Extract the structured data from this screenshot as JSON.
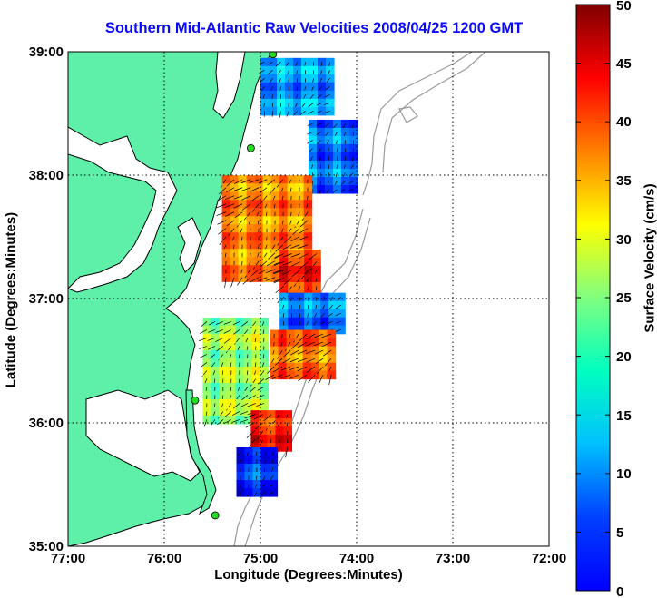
{
  "title": "Southern Mid-Atlantic Raw Velocities 2008/04/25 1200 GMT",
  "x_axis": {
    "label": "Longitude (Degrees:Minutes)",
    "ticks": [
      "77:00",
      "76:00",
      "75:00",
      "74:00",
      "73:00",
      "72:00"
    ],
    "range": [
      -77,
      -72
    ]
  },
  "y_axis": {
    "label": "Latitude (Degrees:Minutes)",
    "ticks": [
      "35:00",
      "36:00",
      "37:00",
      "38:00",
      "39:00"
    ],
    "range": [
      35,
      39
    ]
  },
  "colorbar": {
    "label": "Surface Velocity (cm/s)",
    "ticks": [
      "0",
      "5",
      "10",
      "15",
      "20",
      "25",
      "30",
      "35",
      "40",
      "45",
      "50"
    ],
    "range": [
      0,
      50
    ],
    "colormap": "jet"
  },
  "colors": {
    "land": "#5ef0a8",
    "coastline": "#000000",
    "bathymetry": "#9a9a9a",
    "grid": "#000000",
    "title": "#0a0aff",
    "station": "#22dd22"
  },
  "legend": "none",
  "grid": "dotted",
  "chart_data": {
    "type": "heatmap",
    "title": "Southern Mid-Atlantic Raw Velocities 2008/04/25 1200 GMT",
    "xlabel": "Longitude (Degrees:Minutes)",
    "ylabel": "Latitude (Degrees:Minutes)",
    "xlim": [
      -77,
      -72
    ],
    "ylim": [
      35,
      39
    ],
    "colorbar_label": "Surface Velocity (cm/s)",
    "clim": [
      0,
      50
    ],
    "stations": [
      {
        "lon": -74.87,
        "lat": 38.98
      },
      {
        "lon": -75.1,
        "lat": 38.22
      },
      {
        "lon": -75.68,
        "lat": 36.18
      },
      {
        "lon": -75.47,
        "lat": 35.25
      }
    ],
    "velocity_regions": [
      {
        "region": "upper-north",
        "lon": [
          -75.0,
          -74.3
        ],
        "lat": [
          38.5,
          38.95
        ],
        "speed": 14
      },
      {
        "region": "upper-east",
        "lon": [
          -74.5,
          -74.05
        ],
        "lat": [
          37.9,
          38.45
        ],
        "speed": 12
      },
      {
        "region": "central-core",
        "lon": [
          -75.4,
          -74.5
        ],
        "lat": [
          37.2,
          38.0
        ],
        "speed": 37
      },
      {
        "region": "central-south",
        "lon": [
          -74.8,
          -74.4
        ],
        "lat": [
          37.0,
          37.4
        ],
        "speed": 42
      },
      {
        "region": "mid-band",
        "lon": [
          -74.8,
          -74.2
        ],
        "lat": [
          36.75,
          37.05
        ],
        "speed": 12
      },
      {
        "region": "lower-west",
        "lon": [
          -75.6,
          -75.0
        ],
        "lat": [
          36.0,
          36.85
        ],
        "speed": 27
      },
      {
        "region": "lower-core",
        "lon": [
          -74.9,
          -74.3
        ],
        "lat": [
          36.4,
          36.75
        ],
        "speed": 38
      },
      {
        "region": "southern-lobe",
        "lon": [
          -75.1,
          -74.7
        ],
        "lat": [
          35.8,
          36.1
        ],
        "speed": 42
      },
      {
        "region": "southern-edge",
        "lon": [
          -75.25,
          -74.9
        ],
        "lat": [
          35.45,
          35.8
        ],
        "speed": 9
      }
    ]
  }
}
